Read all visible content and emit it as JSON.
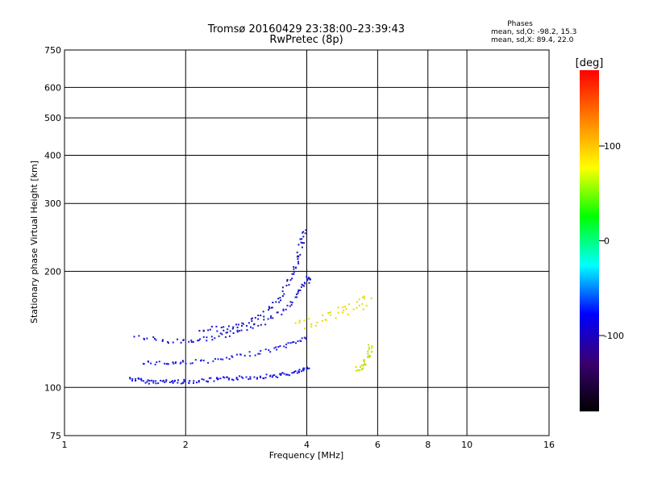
{
  "chart_data": {
    "type": "scatter",
    "title": "Tromsø 20160429 23:38:00–23:39:43",
    "subtitle": "RwPretec (8p)",
    "xlabel": "Frequency [MHz]",
    "ylabel": "Stationary phase Virtual Height [km]",
    "x_scale": "log",
    "y_scale": "log",
    "xlim": [
      1,
      16
    ],
    "ylim": [
      75,
      750
    ],
    "x_ticks": [
      1,
      2,
      4,
      6,
      8,
      10,
      16
    ],
    "y_ticks": [
      75,
      100,
      200,
      300,
      400,
      500,
      600,
      750
    ],
    "grid": true,
    "stats": {
      "heading": "Phases",
      "line1": "mean, sd,O: -98.2, 15.3",
      "line2": "mean, sd,X:  89.4, 22.0"
    },
    "colorbar": {
      "label": "[deg]",
      "range": [
        -180,
        180
      ],
      "ticks": [
        100,
        0,
        -100
      ],
      "stops": [
        "#000000",
        "#3a0070",
        "#0000ff",
        "#00ffff",
        "#00ff00",
        "#ffff00",
        "#ff8000",
        "#ff0000"
      ]
    },
    "o_trace": [
      [
        1.45,
        106
      ],
      [
        1.6,
        104
      ],
      [
        1.8,
        104
      ],
      [
        2.0,
        104
      ],
      [
        2.3,
        105
      ],
      [
        2.6,
        106
      ],
      [
        3.0,
        107
      ],
      [
        3.4,
        108
      ],
      [
        3.8,
        110
      ],
      [
        4.05,
        113
      ]
    ],
    "lower_trace": [
      [
        1.55,
        117
      ],
      [
        1.8,
        116
      ],
      [
        2.0,
        117
      ],
      [
        2.4,
        118
      ],
      [
        2.8,
        122
      ],
      [
        3.3,
        126
      ],
      [
        3.7,
        131
      ],
      [
        4.0,
        136
      ]
    ],
    "middle_trace": [
      [
        1.5,
        136
      ],
      [
        1.8,
        132
      ],
      [
        2.1,
        133
      ],
      [
        2.4,
        136
      ],
      [
        2.7,
        140
      ],
      [
        3.1,
        148
      ],
      [
        3.5,
        160
      ],
      [
        3.8,
        175
      ],
      [
        4.0,
        190
      ],
      [
        4.05,
        195
      ]
    ],
    "upper_trace": [
      [
        2.15,
        142
      ],
      [
        2.5,
        143
      ],
      [
        2.8,
        146
      ],
      [
        3.1,
        155
      ],
      [
        3.4,
        170
      ],
      [
        3.6,
        190
      ],
      [
        3.75,
        210
      ],
      [
        3.85,
        235
      ],
      [
        3.95,
        260
      ]
    ],
    "x_trace": [
      [
        5.3,
        112
      ],
      [
        5.5,
        114
      ],
      [
        5.6,
        118
      ],
      [
        5.7,
        124
      ],
      [
        5.75,
        130
      ]
    ],
    "x_band": [
      [
        3.8,
        145
      ],
      [
        4.2,
        150
      ],
      [
        4.6,
        155
      ],
      [
        5.0,
        160
      ],
      [
        5.4,
        165
      ],
      [
        5.7,
        175
      ]
    ]
  }
}
